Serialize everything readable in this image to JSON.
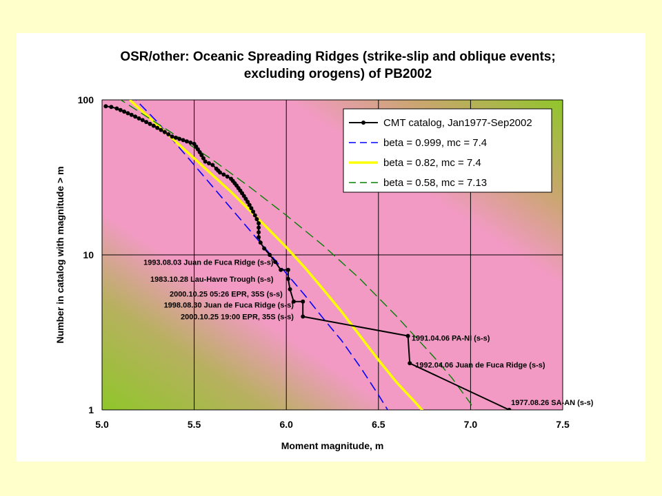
{
  "colors": {
    "page_bg": "#ffffcc",
    "panel_bg": "#ffffff",
    "plot_pink": "#f29ac4",
    "plot_green": "#8fc62a",
    "grid": "#000000",
    "cmt": "#000000",
    "blue": "#0000ff",
    "yellow": "#ffff00",
    "green_dash": "#008000"
  },
  "chart_data": {
    "type": "line",
    "title": "OSR/other: Oceanic Spreading Ridges (strike-slip and oblique events; excluding orogens) of PB2002",
    "title_lines": [
      "OSR/other: Oceanic Spreading Ridges (strike-slip and oblique events;",
      "excluding orogens) of PB2002"
    ],
    "xlabel": "Moment magnitude, m",
    "ylabel": "Number in catalog with magnitude > m",
    "xlim": [
      5.0,
      7.5
    ],
    "ylim": [
      1,
      100
    ],
    "y_scale": "log",
    "x_ticks": [
      "5.0",
      "5.5",
      "6.0",
      "6.5",
      "7.0",
      "7.5"
    ],
    "y_ticks": [
      "1",
      "10",
      "100"
    ],
    "grid": true,
    "legend_position": "top-right",
    "series": [
      {
        "name": "CMT catalog, Jan1977-Sep2002",
        "style": "black solid line with dot markers",
        "x": [
          5.02,
          5.05,
          5.08,
          5.1,
          5.12,
          5.14,
          5.16,
          5.18,
          5.2,
          5.22,
          5.24,
          5.26,
          5.28,
          5.3,
          5.32,
          5.34,
          5.36,
          5.38,
          5.4,
          5.42,
          5.44,
          5.46,
          5.48,
          5.5,
          5.51,
          5.52,
          5.53,
          5.54,
          5.55,
          5.56,
          5.58,
          5.6,
          5.62,
          5.63,
          5.64,
          5.66,
          5.68,
          5.7,
          5.71,
          5.72,
          5.73,
          5.74,
          5.75,
          5.76,
          5.77,
          5.78,
          5.79,
          5.8,
          5.81,
          5.82,
          5.83,
          5.84,
          5.85,
          5.85,
          5.85,
          5.85,
          5.86,
          5.88,
          5.91,
          5.94,
          5.97,
          6.01,
          6.01,
          6.02,
          6.04,
          6.09,
          6.09,
          6.66,
          6.67,
          7.21
        ],
        "y": [
          91,
          90,
          88,
          86,
          84,
          82,
          80,
          78,
          76,
          74,
          72,
          70,
          68,
          66,
          64,
          62,
          60,
          58,
          57,
          56,
          55,
          54,
          53,
          52,
          50,
          48,
          46,
          44,
          42,
          40,
          39,
          38,
          36,
          35,
          34,
          33,
          32,
          31,
          30,
          29,
          28,
          27,
          26,
          25,
          24,
          23,
          22,
          21,
          20,
          19,
          18,
          17,
          16,
          15,
          14,
          13,
          12,
          11,
          10,
          9,
          8,
          8,
          7,
          6,
          5,
          5,
          4,
          3,
          2,
          1
        ]
      },
      {
        "name": "beta = 0.999, mc = 7.4",
        "style": "blue long dash",
        "x": [
          5.15,
          5.3,
          5.5,
          5.7,
          5.9,
          6.0,
          6.1,
          6.2,
          6.3,
          6.4,
          6.5,
          6.55
        ],
        "y": [
          110,
          72,
          38,
          20,
          10.5,
          7.6,
          5.5,
          3.9,
          2.8,
          1.9,
          1.25,
          1.0
        ]
      },
      {
        "name": "beta = 0.82, mc = 7.4",
        "style": "thick yellow solid",
        "x": [
          5.15,
          5.3,
          5.5,
          5.7,
          5.9,
          6.0,
          6.1,
          6.2,
          6.3,
          6.4,
          6.5,
          6.6,
          6.7,
          6.77
        ],
        "y": [
          100,
          69,
          42,
          25.5,
          14.8,
          11.2,
          8.3,
          6.0,
          4.3,
          3.0,
          2.1,
          1.5,
          1.12,
          0.9
        ]
      },
      {
        "name": "beta = 0.58, mc = 7.13",
        "style": "green dashed",
        "x": [
          5.08,
          5.2,
          5.4,
          5.6,
          5.8,
          6.0,
          6.2,
          6.4,
          6.6,
          6.8,
          6.9,
          7.0,
          7.05
        ],
        "y": [
          104,
          84,
          59,
          41,
          27.5,
          18,
          11.5,
          7.0,
          4.0,
          2.2,
          1.6,
          1.1,
          0.85
        ]
      }
    ],
    "annotations": [
      {
        "text": "1993.08.03 Juan de Fuca Ridge (s-s)",
        "x": 5.93,
        "y": 9,
        "anchor": "end"
      },
      {
        "text": "1983.10.28 Lau-Havre Trough (s-s)",
        "x": 5.93,
        "y": 7,
        "anchor": "end"
      },
      {
        "text": "2000.10.25 05:26 EPR, 35S (s-s)",
        "x": 5.98,
        "y": 5.6,
        "anchor": "end"
      },
      {
        "text": "1998.08.30 Juan de Fuca Ridge (s-s)",
        "x": 6.04,
        "y": 4.75,
        "anchor": "end"
      },
      {
        "text": "2000.10.25 19:00 EPR, 35S (s-s)",
        "x": 6.04,
        "y": 4.0,
        "anchor": "end"
      },
      {
        "text": "1991.04.06 PA-NI (s-s)",
        "x": 6.68,
        "y": 2.92,
        "anchor": "start"
      },
      {
        "text": "1992.04.06 Juan de Fuca Ridge (s-s)",
        "x": 6.7,
        "y": 1.95,
        "anchor": "start"
      },
      {
        "text": "1977.08.26 SA-AN (s-s)",
        "x": 7.22,
        "y": 1.12,
        "anchor": "start"
      }
    ]
  }
}
